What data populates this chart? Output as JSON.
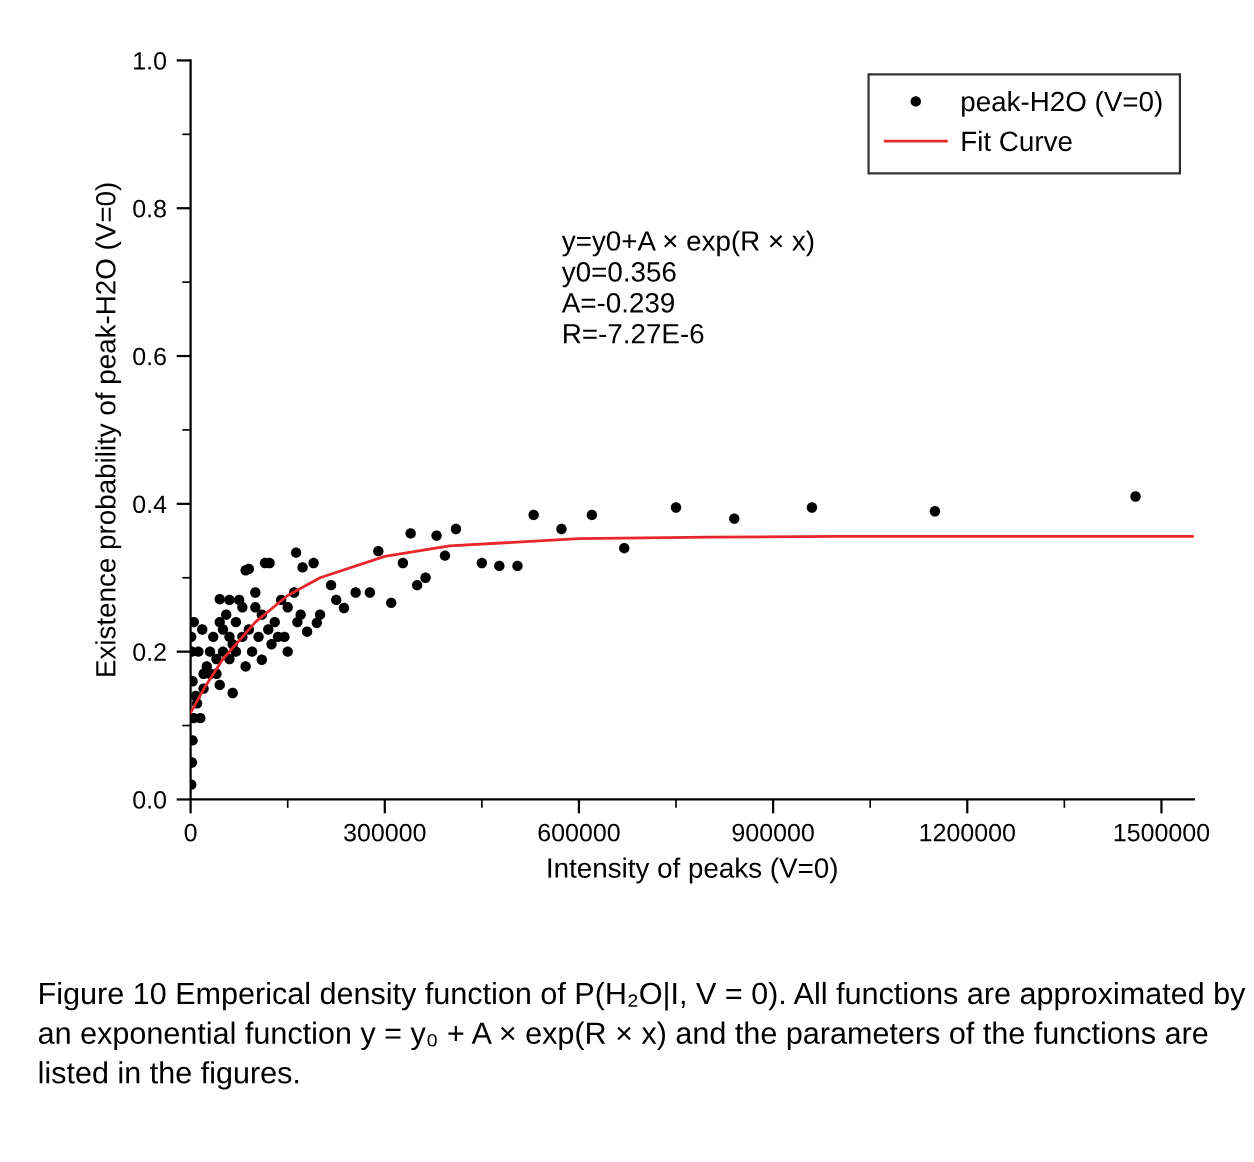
{
  "chart_data": {
    "type": "scatter",
    "xlabel": "Intensity of peaks (V=0)",
    "ylabel": "Existence probability of peak-H2O (V=0)",
    "xlim": [
      0,
      1550000
    ],
    "xticks": [
      0,
      300000,
      600000,
      900000,
      1200000,
      1500000
    ],
    "ylim": [
      0,
      1.0
    ],
    "yticks": [
      {
        "value": 0,
        "label": "0.0"
      },
      0.2,
      0.4,
      0.6,
      0.8,
      {
        "value": 1,
        "label": "1.0"
      }
    ],
    "grid": false,
    "legend": "top right",
    "marker": "circle",
    "series": [
      {
        "name": "peak-H2O (V=0)",
        "color": "#000000",
        "x": [
          1460000,
          1150000,
          960000,
          840000,
          750000,
          670000,
          620000,
          573000,
          530000,
          505000,
          477000,
          450000,
          410000,
          393000,
          380000,
          363000,
          350000,
          340000,
          328000,
          310000,
          290000,
          277000,
          255000,
          237000,
          225000,
          217000,
          200000,
          195000,
          190000,
          180000,
          173000,
          163000,
          145000,
          122000,
          115000,
          110000,
          90000,
          85000,
          65000,
          60000,
          45000,
          15000,
          45000,
          85000,
          125000,
          100000,
          80000,
          70000,
          60000,
          50000,
          40000,
          30000,
          20000,
          10000,
          5000,
          3000,
          2000,
          1000,
          1000,
          2000,
          3000,
          5000,
          8000,
          12000,
          18000,
          25000,
          35000,
          45000,
          55000,
          65000,
          75000,
          90000,
          100000,
          110000,
          130000,
          140000,
          150000,
          160000,
          170000,
          20000,
          30000,
          40000,
          50000,
          60000,
          70000,
          80000,
          95000,
          105000,
          120000,
          135000,
          150000,
          165000
        ],
        "values": [
          0.41,
          0.39,
          0.395,
          0.38,
          0.395,
          0.34,
          0.385,
          0.366,
          0.385,
          0.316,
          0.316,
          0.32,
          0.366,
          0.33,
          0.357,
          0.3,
          0.29,
          0.36,
          0.32,
          0.266,
          0.336,
          0.28,
          0.28,
          0.259,
          0.27,
          0.29,
          0.25,
          0.239,
          0.32,
          0.227,
          0.314,
          0.334,
          0.22,
          0.32,
          0.32,
          0.189,
          0.312,
          0.31,
          0.144,
          0.27,
          0.271,
          0.11,
          0.155,
          0.18,
          0.21,
          0.28,
          0.26,
          0.24,
          0.22,
          0.2,
          0.19,
          0.17,
          0.15,
          0.13,
          0.11,
          0.08,
          0.05,
          0.02,
          0.22,
          0.2,
          0.16,
          0.24,
          0.14,
          0.2,
          0.23,
          0.18,
          0.22,
          0.24,
          0.25,
          0.21,
          0.27,
          0.23,
          0.26,
          0.25,
          0.24,
          0.27,
          0.26,
          0.28,
          0.25,
          0.17,
          0.2,
          0.17,
          0.23,
          0.19,
          0.2,
          0.22,
          0.2,
          0.22,
          0.23,
          0.22,
          0.2,
          0.24
        ]
      },
      {
        "name": "Fit Curve",
        "type": "line",
        "color": "#e8262b",
        "marker": "none",
        "line_style": "solid",
        "x": [
          0,
          20000,
          50000,
          100000,
          150000,
          200000,
          300000,
          400000,
          600000,
          800000,
          1000000,
          1550000
        ],
        "values": [
          0.117,
          0.149,
          0.19,
          0.24,
          0.276,
          0.3,
          0.329,
          0.343,
          0.353,
          0.355,
          0.356,
          0.356
        ]
      }
    ],
    "annotations": [
      "y=y0+A × exp(R × x)\ny0=0.356\nA=-0.239\nR=-7.27E-6",
      "Figure 10 Emperical density function of P(H₂O|I, V = 0). All functions are approximated by an exponential function y = y₀ + A × exp(R × x) and the parameters of the functions are listed in the figures."
    ]
  }
}
